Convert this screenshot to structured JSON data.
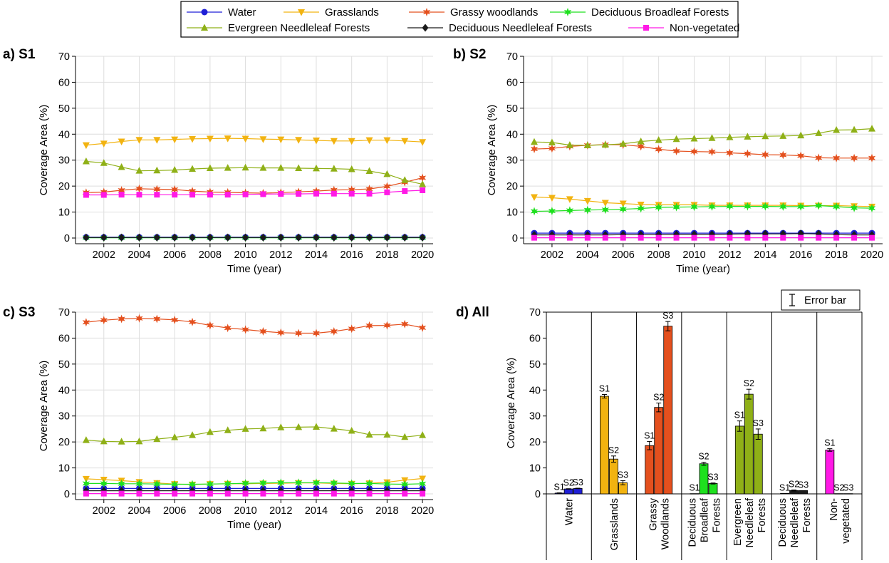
{
  "legend": {
    "entries": [
      {
        "name": "Water",
        "color": "#1f1fd6",
        "marker": "circle"
      },
      {
        "name": "Grasslands",
        "color": "#f2b310",
        "marker": "triangle-down"
      },
      {
        "name": "Grassy woodlands",
        "color": "#e4501e",
        "marker": "star"
      },
      {
        "name": "Deciduous Broadleaf Forests",
        "color": "#1ee01e",
        "marker": "star"
      },
      {
        "name": "Evergreen Needleleaf Forests",
        "color": "#8fb017",
        "marker": "triangle-up"
      },
      {
        "name": "Deciduous Needleleaf Forests",
        "color": "#1a1a1a",
        "marker": "diamond"
      },
      {
        "name": "Non-vegetated",
        "color": "#ff19e6",
        "marker": "square"
      }
    ]
  },
  "chart_data": [
    {
      "panel": "a) S1",
      "type": "line",
      "xlabel": "Time (year)",
      "ylabel": "Coverage Area (%)",
      "xlim": [
        2001,
        2020
      ],
      "ylim": [
        0,
        70
      ],
      "x_ticks": [
        2002,
        2004,
        2006,
        2008,
        2010,
        2012,
        2014,
        2016,
        2018,
        2020
      ],
      "y_ticks": [
        0,
        10,
        20,
        30,
        40,
        50,
        60,
        70
      ],
      "grid": true,
      "x": [
        2001,
        2002,
        2003,
        2004,
        2005,
        2006,
        2007,
        2008,
        2009,
        2010,
        2011,
        2012,
        2013,
        2014,
        2015,
        2016,
        2017,
        2018,
        2019,
        2020
      ],
      "series": [
        {
          "name": "Water",
          "values": [
            0.3,
            0.3,
            0.3,
            0.3,
            0.3,
            0.3,
            0.3,
            0.3,
            0.3,
            0.3,
            0.3,
            0.3,
            0.3,
            0.3,
            0.3,
            0.3,
            0.3,
            0.3,
            0.3,
            0.3
          ]
        },
        {
          "name": "Grasslands",
          "values": [
            35.8,
            36.4,
            37.2,
            37.8,
            37.8,
            38.0,
            38.2,
            38.3,
            38.4,
            38.3,
            38.1,
            38.0,
            37.8,
            37.6,
            37.4,
            37.4,
            37.7,
            37.7,
            37.4,
            37.0
          ]
        },
        {
          "name": "Grassy woodlands",
          "values": [
            17.5,
            17.7,
            18.4,
            19.0,
            18.8,
            18.7,
            18.1,
            17.7,
            17.6,
            17.4,
            17.3,
            17.5,
            17.8,
            18.1,
            18.5,
            18.6,
            18.9,
            19.9,
            21.5,
            23.2
          ]
        },
        {
          "name": "Deciduous Broadleaf Forests",
          "values": [
            0.1,
            0.1,
            0.1,
            0.1,
            0.1,
            0.1,
            0.1,
            0.1,
            0.1,
            0.1,
            0.1,
            0.1,
            0.1,
            0.1,
            0.1,
            0.1,
            0.1,
            0.1,
            0.1,
            0.1
          ]
        },
        {
          "name": "Evergreen Needleleaf Forests",
          "values": [
            29.5,
            28.9,
            27.3,
            25.9,
            26.0,
            26.2,
            26.6,
            26.9,
            27.0,
            27.1,
            27.0,
            27.0,
            26.9,
            26.8,
            26.7,
            26.5,
            25.8,
            24.6,
            22.3,
            20.7
          ]
        },
        {
          "name": "Deciduous Needleleaf Forests",
          "values": [
            0.2,
            0.2,
            0.2,
            0.2,
            0.2,
            0.2,
            0.2,
            0.2,
            0.2,
            0.2,
            0.2,
            0.2,
            0.2,
            0.2,
            0.2,
            0.2,
            0.2,
            0.2,
            0.2,
            0.2
          ]
        },
        {
          "name": "Non-vegetated",
          "values": [
            16.6,
            16.6,
            16.7,
            16.7,
            16.7,
            16.7,
            16.7,
            16.7,
            16.7,
            16.8,
            16.9,
            17.0,
            17.0,
            17.1,
            17.1,
            17.1,
            17.1,
            17.6,
            18.1,
            18.4
          ]
        }
      ]
    },
    {
      "panel": "b) S2",
      "type": "line",
      "xlabel": "Time (year)",
      "ylabel": "Coverage Area (%)",
      "xlim": [
        2001,
        2020
      ],
      "ylim": [
        0,
        70
      ],
      "x_ticks": [
        2002,
        2004,
        2006,
        2008,
        2010,
        2012,
        2014,
        2016,
        2018,
        2020
      ],
      "y_ticks": [
        0,
        10,
        20,
        30,
        40,
        50,
        60,
        70
      ],
      "grid": true,
      "x": [
        2001,
        2002,
        2003,
        2004,
        2005,
        2006,
        2007,
        2008,
        2009,
        2010,
        2011,
        2012,
        2013,
        2014,
        2015,
        2016,
        2017,
        2018,
        2019,
        2020
      ],
      "series": [
        {
          "name": "Water",
          "values": [
            1.9,
            1.9,
            1.9,
            1.9,
            1.9,
            1.9,
            1.9,
            1.9,
            1.9,
            1.9,
            1.9,
            1.9,
            1.9,
            1.9,
            1.9,
            1.9,
            1.9,
            1.9,
            1.9,
            1.9
          ]
        },
        {
          "name": "Grasslands",
          "values": [
            15.8,
            15.5,
            15.0,
            14.3,
            13.6,
            13.3,
            12.9,
            12.8,
            12.8,
            12.8,
            12.6,
            12.6,
            12.6,
            12.6,
            12.6,
            12.5,
            12.5,
            12.5,
            12.3,
            12.1
          ]
        },
        {
          "name": "Grassy woodlands",
          "values": [
            34.3,
            34.5,
            35.3,
            35.7,
            36.0,
            35.9,
            35.3,
            34.2,
            33.5,
            33.3,
            33.2,
            32.8,
            32.5,
            32.1,
            32.0,
            31.7,
            30.9,
            30.8,
            30.8,
            30.8
          ]
        },
        {
          "name": "Deciduous Broadleaf Forests",
          "values": [
            10.3,
            10.4,
            10.6,
            10.8,
            10.9,
            11.1,
            11.4,
            11.8,
            11.9,
            12.0,
            12.1,
            12.2,
            12.2,
            12.2,
            12.1,
            12.1,
            12.5,
            12.1,
            11.6,
            11.5
          ]
        },
        {
          "name": "Evergreen Needleleaf Forests",
          "values": [
            37.0,
            36.8,
            35.8,
            35.7,
            35.9,
            36.3,
            37.2,
            37.7,
            38.1,
            38.3,
            38.5,
            38.8,
            39.0,
            39.2,
            39.3,
            39.5,
            40.4,
            41.6,
            41.7,
            42.1
          ]
        },
        {
          "name": "Deciduous Needleleaf Forests",
          "values": [
            1.2,
            1.2,
            1.2,
            1.2,
            1.2,
            1.3,
            1.3,
            1.3,
            1.4,
            1.4,
            1.4,
            1.5,
            1.6,
            1.6,
            1.6,
            1.7,
            1.6,
            1.3,
            1.2,
            1.2
          ]
        },
        {
          "name": "Non-vegetated",
          "values": [
            0.1,
            0.1,
            0.1,
            0.1,
            0.1,
            0.1,
            0.1,
            0.1,
            0.1,
            0.1,
            0.1,
            0.1,
            0.1,
            0.1,
            0.1,
            0.1,
            0.1,
            0.1,
            0.1,
            0.1
          ]
        }
      ]
    },
    {
      "panel": "c) S3",
      "type": "line",
      "xlabel": "Time (year)",
      "ylabel": "Coverage Area (%)",
      "xlim": [
        2001,
        2020
      ],
      "ylim": [
        0,
        70
      ],
      "x_ticks": [
        2002,
        2004,
        2006,
        2008,
        2010,
        2012,
        2014,
        2016,
        2018,
        2020
      ],
      "y_ticks": [
        0,
        10,
        20,
        30,
        40,
        50,
        60,
        70
      ],
      "grid": true,
      "x": [
        2001,
        2002,
        2003,
        2004,
        2005,
        2006,
        2007,
        2008,
        2009,
        2010,
        2011,
        2012,
        2013,
        2014,
        2015,
        2016,
        2017,
        2018,
        2019,
        2020
      ],
      "series": [
        {
          "name": "Water",
          "values": [
            2.1,
            2.1,
            2.1,
            2.1,
            2.1,
            2.1,
            2.1,
            2.1,
            2.1,
            2.1,
            2.1,
            2.1,
            2.1,
            2.1,
            2.1,
            2.1,
            2.1,
            2.1,
            2.1,
            2.1
          ]
        },
        {
          "name": "Grasslands",
          "values": [
            5.8,
            5.5,
            5.1,
            4.6,
            4.2,
            3.8,
            3.6,
            3.8,
            3.9,
            3.9,
            4.0,
            4.1,
            4.2,
            4.2,
            4.0,
            3.9,
            4.1,
            4.5,
            5.3,
            5.9
          ]
        },
        {
          "name": "Grassy woodlands",
          "values": [
            66.1,
            66.9,
            67.4,
            67.6,
            67.4,
            67.0,
            66.2,
            64.9,
            63.9,
            63.3,
            62.6,
            62.1,
            61.9,
            61.9,
            62.6,
            63.6,
            64.8,
            64.9,
            65.4,
            64.0
          ]
        },
        {
          "name": "Deciduous Broadleaf Forests",
          "values": [
            4.0,
            4.0,
            3.9,
            3.9,
            3.8,
            3.7,
            3.7,
            3.8,
            3.9,
            4.1,
            4.2,
            4.3,
            4.3,
            4.3,
            4.2,
            4.0,
            4.0,
            3.8,
            3.7,
            3.9
          ]
        },
        {
          "name": "Evergreen Needleleaf Forests",
          "values": [
            20.7,
            20.2,
            20.1,
            20.2,
            21.1,
            21.8,
            22.6,
            23.8,
            24.5,
            25.0,
            25.2,
            25.6,
            25.7,
            25.8,
            25.1,
            24.3,
            22.8,
            22.8,
            21.9,
            22.6
          ]
        },
        {
          "name": "Deciduous Needleleaf Forests",
          "values": [
            1.2,
            1.2,
            1.2,
            1.2,
            1.2,
            1.2,
            1.2,
            1.2,
            1.2,
            1.2,
            1.2,
            1.2,
            1.2,
            1.2,
            1.2,
            1.2,
            1.2,
            1.2,
            1.2,
            1.2
          ]
        },
        {
          "name": "Non-vegetated",
          "values": [
            0.1,
            0.1,
            0.1,
            0.1,
            0.1,
            0.1,
            0.1,
            0.1,
            0.1,
            0.1,
            0.1,
            0.1,
            0.1,
            0.1,
            0.1,
            0.1,
            0.1,
            0.1,
            0.1,
            0.1
          ]
        }
      ]
    },
    {
      "panel": "d) All",
      "type": "bar",
      "ylabel": "Coverage Area (%)",
      "ylim": [
        0,
        70
      ],
      "y_ticks": [
        0,
        10,
        20,
        30,
        40,
        50,
        60,
        70
      ],
      "error_bar_legend": "Error bar",
      "bar_labels": [
        "S1",
        "S2",
        "S3"
      ],
      "categories": [
        {
          "lines": [
            "Water"
          ],
          "color": "#1f1fd6",
          "values": [
            0.3,
            1.9,
            2.1
          ],
          "errors": [
            0.1,
            0.1,
            0.1
          ]
        },
        {
          "lines": [
            "Grasslands"
          ],
          "color": "#f2b310",
          "values": [
            37.6,
            13.4,
            4.3
          ],
          "errors": [
            0.7,
            1.2,
            0.8
          ]
        },
        {
          "lines": [
            "Grassy",
            "Woodlands"
          ],
          "color": "#e4501e",
          "values": [
            18.6,
            33.3,
            64.6
          ],
          "errors": [
            1.6,
            1.7,
            1.8
          ]
        },
        {
          "lines": [
            "Deciduous",
            "Broadleaf",
            "Forests"
          ],
          "color": "#1ee01e",
          "values": [
            0.1,
            11.6,
            4.0
          ],
          "errors": [
            0.0,
            0.6,
            0.2
          ]
        },
        {
          "lines": [
            "Evergreen",
            "Needleleaf",
            "Forests"
          ],
          "color": "#8fb017",
          "values": [
            26.1,
            38.4,
            23.0
          ],
          "errors": [
            2.0,
            1.9,
            2.0
          ]
        },
        {
          "lines": [
            "Deciduous",
            "Needleleaf",
            "Forests"
          ],
          "color": "#1a1a1a",
          "values": [
            0.2,
            1.3,
            1.3
          ],
          "errors": [
            0.0,
            0.2,
            0.0
          ]
        },
        {
          "lines": [
            "Non-",
            "vegetated"
          ],
          "color": "#ff19e6",
          "values": [
            16.9,
            0.1,
            0.1
          ],
          "errors": [
            0.5,
            0.0,
            0.0
          ]
        }
      ]
    }
  ]
}
